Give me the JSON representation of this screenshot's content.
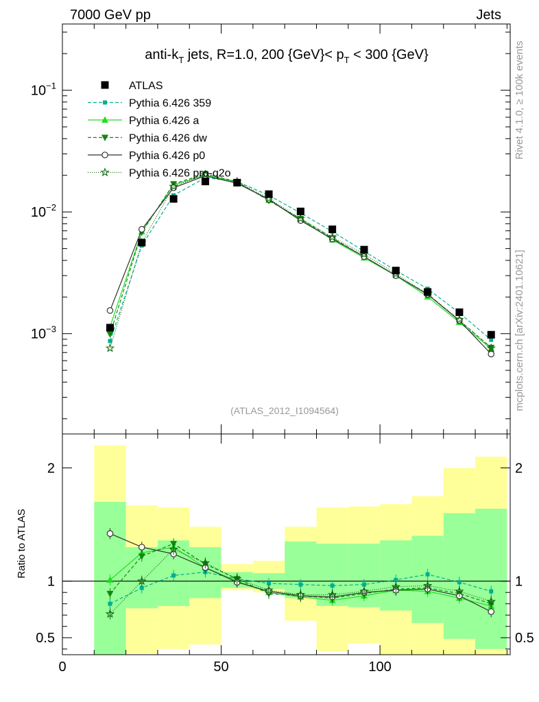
{
  "header": {
    "left": "7000 GeV pp",
    "right": "Jets"
  },
  "side": {
    "rivet": "Rivet 4.1.0, ≥ 100k events",
    "mcplots": "mcplots.cern.ch [arXiv:2401.10621]"
  },
  "chart_data": [
    {
      "type": "line",
      "title_parts": [
        "anti-k",
        "T",
        " jets, R=1.0, 200 {GeV}< p",
        "T",
        " < 300 {GeV}"
      ],
      "analysis_label": "(ATLAS_2012_I1094564)",
      "yscale": "log",
      "ylim": [
        0.00015,
        0.35
      ],
      "xlim": [
        0,
        141
      ],
      "y_ticks": [
        {
          "base": "10",
          "exp": "−1",
          "value": 0.1
        },
        {
          "base": "10",
          "exp": "−2",
          "value": 0.01
        },
        {
          "base": "10",
          "exp": "−3",
          "value": 0.001
        }
      ],
      "x": [
        15,
        25,
        35,
        45,
        55,
        65,
        75,
        85,
        95,
        105,
        115,
        125,
        135
      ],
      "series": [
        {
          "name": "ATLAS",
          "color": "#000000",
          "values": [
            0.00112,
            0.0056,
            0.0128,
            0.0178,
            0.0174,
            0.014,
            0.0101,
            0.0072,
            0.0049,
            0.0033,
            0.0022,
            0.0015,
            0.00098
          ]
        },
        {
          "name": "Pythia 6.426 359",
          "color": "#00b08f",
          "values": [
            0.00087,
            0.0053,
            0.0137,
            0.0191,
            0.0178,
            0.0137,
            0.0098,
            0.0069,
            0.00475,
            0.0033,
            0.00234,
            0.00148,
            0.00089
          ]
        },
        {
          "name": "Pythia 6.426 a",
          "color": "#22dd22",
          "values": [
            0.00114,
            0.0069,
            0.0167,
            0.02,
            0.0175,
            0.0125,
            0.0087,
            0.0059,
            0.0042,
            0.003,
            0.00201,
            0.00124,
            0.00075
          ]
        },
        {
          "name": "Pythia 6.426 dw",
          "color": "#118811",
          "values": [
            0.00099,
            0.0068,
            0.017,
            0.0205,
            0.0177,
            0.0124,
            0.0088,
            0.0061,
            0.0043,
            0.003,
            0.00212,
            0.00128,
            0.00077
          ]
        },
        {
          "name": "Pythia 6.426 p0",
          "color": "#333333",
          "values": [
            0.00155,
            0.0072,
            0.0158,
            0.0198,
            0.0172,
            0.0127,
            0.0085,
            0.006,
            0.0043,
            0.003,
            0.0021,
            0.00128,
            0.00068
          ]
        },
        {
          "name": "Pythia 6.426 pro-q2o",
          "color": "#116611",
          "values": [
            0.00076,
            0.0056,
            0.0162,
            0.0203,
            0.0178,
            0.0129,
            0.0088,
            0.0062,
            0.0045,
            0.0031,
            0.00212,
            0.0013,
            0.00076
          ]
        }
      ]
    },
    {
      "type": "line",
      "ylabel": "Ratio to ATLAS",
      "ylim": [
        0.35,
        2.3
      ],
      "y_tick_labels": [
        {
          "label": "2",
          "value": 2
        },
        {
          "label": "1",
          "value": 1
        },
        {
          "label": "0.5",
          "value": 0.5
        }
      ],
      "x_tick_labels": [
        {
          "label": "0",
          "value": 0
        },
        {
          "label": "50",
          "value": 50
        },
        {
          "label": "100",
          "value": 100
        }
      ],
      "x": [
        15,
        25,
        35,
        45,
        55,
        65,
        75,
        85,
        95,
        105,
        115,
        125,
        135
      ],
      "bands": {
        "edges": [
          10,
          20,
          30,
          40,
          50,
          60,
          70,
          80,
          90,
          100,
          110,
          120,
          130,
          140
        ],
        "yellow_low": [
          0.35,
          0.36,
          0.4,
          0.44,
          0.92,
          0.9,
          0.65,
          0.38,
          0.45,
          0.35,
          0.35,
          0.35,
          0.35
        ],
        "yellow_high": [
          2.2,
          1.67,
          1.65,
          1.48,
          1.15,
          1.18,
          1.48,
          1.65,
          1.66,
          1.68,
          1.75,
          2.0,
          2.1
        ],
        "green_low": [
          0.35,
          0.76,
          0.78,
          0.85,
          0.94,
          0.93,
          0.85,
          0.78,
          0.77,
          0.74,
          0.63,
          0.49,
          0.4
        ],
        "green_high": [
          1.7,
          1.3,
          1.36,
          1.3,
          1.08,
          1.07,
          1.35,
          1.33,
          1.33,
          1.36,
          1.4,
          1.6,
          1.64
        ]
      },
      "reference_line": 1,
      "series": [
        {
          "name": "Pythia 6.426 359",
          "color": "#00b08f",
          "values": [
            0.8,
            0.94,
            1.05,
            1.08,
            1.02,
            0.98,
            0.97,
            0.96,
            0.97,
            1.01,
            1.06,
            0.99,
            0.91
          ]
        },
        {
          "name": "Pythia 6.426 a",
          "color": "#22dd22",
          "values": [
            1.01,
            1.25,
            1.3,
            1.12,
            1.0,
            0.9,
            0.86,
            0.83,
            0.87,
            0.92,
            0.91,
            0.85,
            0.78
          ]
        },
        {
          "name": "Pythia 6.426 dw",
          "color": "#118811",
          "values": [
            0.89,
            1.22,
            1.33,
            1.15,
            1.02,
            0.89,
            0.87,
            0.85,
            0.89,
            0.93,
            0.94,
            0.89,
            0.8
          ]
        },
        {
          "name": "Pythia 6.426 p0",
          "color": "#333333",
          "values": [
            1.42,
            1.3,
            1.24,
            1.12,
            0.99,
            0.91,
            0.87,
            0.86,
            0.9,
            0.92,
            0.93,
            0.87,
            0.73
          ]
        },
        {
          "name": "Pythia 6.426 pro-q2o",
          "color": "#116611",
          "values": [
            0.71,
            1.0,
            1.28,
            1.16,
            1.02,
            0.92,
            0.88,
            0.88,
            0.91,
            0.95,
            0.96,
            0.91,
            0.82
          ]
        }
      ]
    }
  ]
}
